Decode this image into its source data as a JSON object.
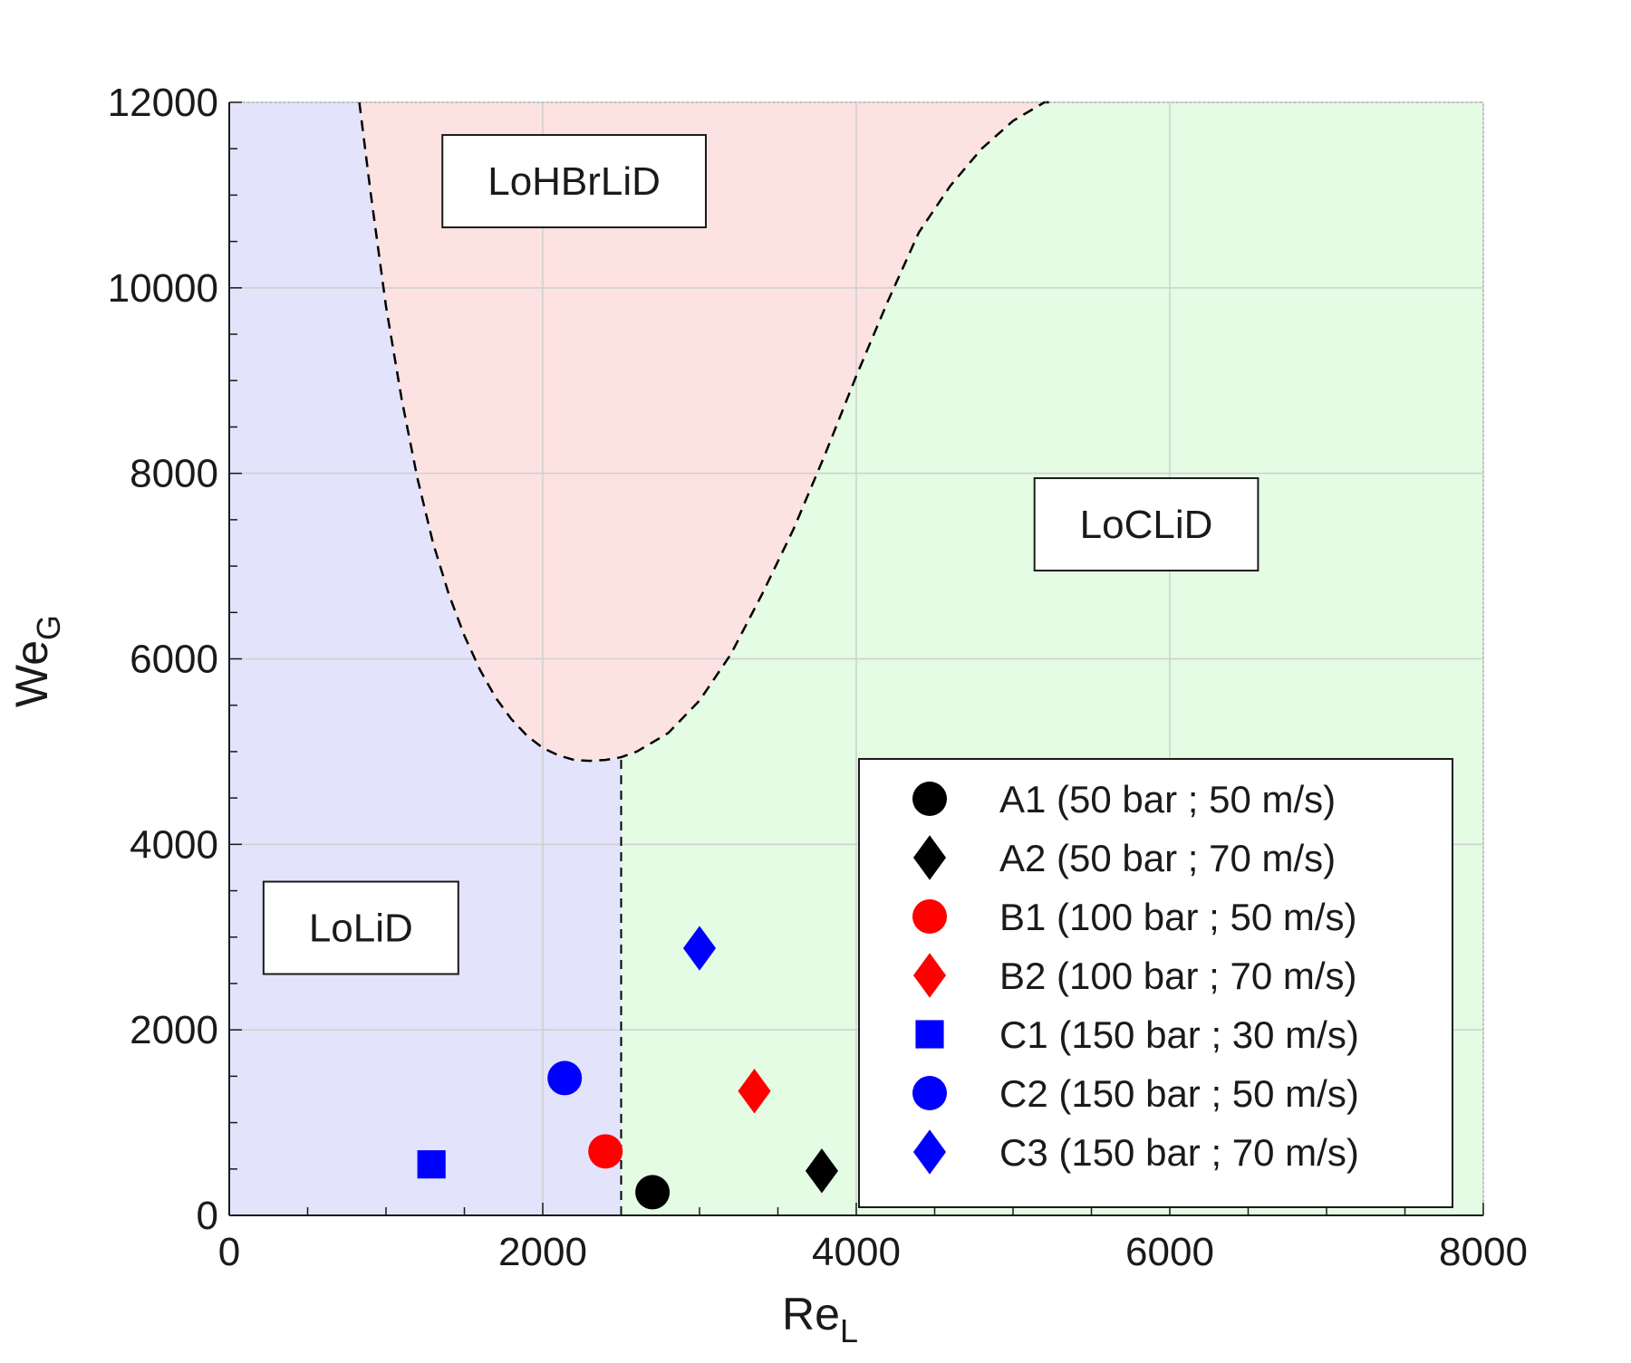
{
  "chart_data": {
    "type": "scatter",
    "title": "",
    "xlabel": "Re",
    "xlabel_sub": "L",
    "ylabel": "We",
    "ylabel_sub": "G",
    "xlim": [
      0,
      8000
    ],
    "ylim": [
      0,
      12000
    ],
    "x_ticks": [
      0,
      2000,
      4000,
      6000,
      8000
    ],
    "y_ticks": [
      0,
      2000,
      4000,
      6000,
      8000,
      10000,
      12000
    ],
    "x_tick_labels": [
      "0",
      "2000",
      "4000",
      "6000",
      "8000"
    ],
    "y_tick_labels": [
      "0",
      "2000",
      "4000",
      "6000",
      "8000",
      "10000",
      "12000"
    ],
    "grid": true,
    "legend_position": "bottom-right",
    "regions": [
      {
        "name": "LoLiD",
        "color": "#e3e3fb",
        "label_at": [
          840,
          3100
        ]
      },
      {
        "name": "LoHBrLiD",
        "color": "#fde2e2",
        "label_at": [
          2200,
          11150
        ]
      },
      {
        "name": "LoCLiD",
        "color": "#e3fce3",
        "label_at": [
          5850,
          7450
        ]
      }
    ],
    "boundary_curve": {
      "style": "dashed",
      "color": "#000000",
      "x": [
        830,
        900,
        1000,
        1100,
        1200,
        1300,
        1400,
        1500,
        1600,
        1700,
        1800,
        1900,
        2000,
        2100,
        2200,
        2300,
        2400,
        2500,
        2600,
        2800,
        3000,
        3200,
        3400,
        3600,
        3800,
        4000,
        4200,
        4400,
        4600,
        4800,
        5000,
        5200,
        5240
      ],
      "y": [
        12000,
        11050,
        9800,
        8800,
        7950,
        7250,
        6700,
        6250,
        5880,
        5580,
        5350,
        5170,
        5040,
        4960,
        4910,
        4900,
        4910,
        4940,
        5000,
        5200,
        5550,
        6050,
        6700,
        7400,
        8200,
        9050,
        9850,
        10600,
        11100,
        11500,
        11800,
        12000,
        12000
      ]
    },
    "vertical_boundary": {
      "x": 2500,
      "y_from": 0,
      "y_to": 4940,
      "style": "dashed"
    },
    "series": [
      {
        "name": "A1 (50 bar ; 50 m/s)",
        "marker": "circle",
        "color": "#000000",
        "points": [
          [
            2700,
            250
          ]
        ]
      },
      {
        "name": "A2 (50 bar ; 70 m/s)",
        "marker": "diamond",
        "color": "#000000",
        "points": [
          [
            3780,
            480
          ]
        ]
      },
      {
        "name": "B1 (100 bar ; 50 m/s)",
        "marker": "circle",
        "color": "#ff0000",
        "points": [
          [
            2400,
            690
          ]
        ]
      },
      {
        "name": "B2 (100 bar ; 70 m/s)",
        "marker": "diamond",
        "color": "#ff0000",
        "points": [
          [
            3350,
            1340
          ]
        ]
      },
      {
        "name": "C1 (150 bar ; 30 m/s)",
        "marker": "square",
        "color": "#0000ff",
        "points": [
          [
            1290,
            550
          ]
        ]
      },
      {
        "name": "C2 (150 bar ; 50 m/s)",
        "marker": "circle",
        "color": "#0000ff",
        "points": [
          [
            2140,
            1480
          ]
        ]
      },
      {
        "name": "C3 (150 bar ; 70 m/s)",
        "marker": "diamond",
        "color": "#0000ff",
        "points": [
          [
            3000,
            2880
          ]
        ]
      }
    ]
  }
}
